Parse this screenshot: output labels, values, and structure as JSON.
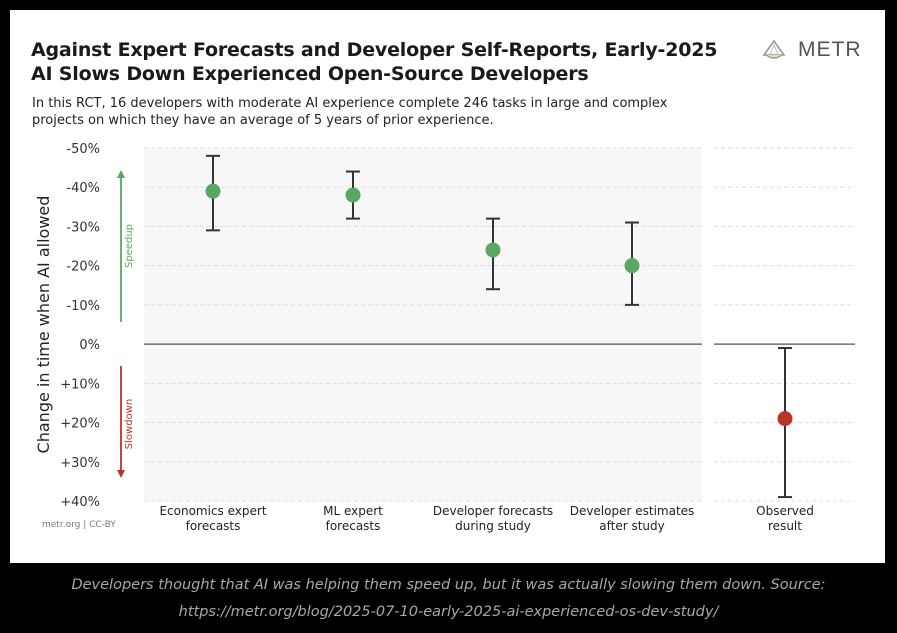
{
  "header": {
    "title_line1": "Against Expert Forecasts and Developer Self-Reports, Early-2025",
    "title_line2": "AI Slows Down Experienced Open-Source Developers",
    "subtitle_line1": "In this RCT, 16 developers with moderate AI experience complete 246 tasks in large and complex",
    "subtitle_line2": "projects on which they have an average of 5 years of prior experience.",
    "logo_text": "METR",
    "logo_icon": "metr-lamp-logo-icon"
  },
  "credit": "metr.org  |  CC-BY",
  "caption": {
    "line1": "Developers thought that AI was helping them speed up, but it was actually slowing them down. Source:",
    "line2": "https://metr.org/blog/2025-07-10-early-2025-ai-experienced-os-dev-study/"
  },
  "colors": {
    "speedup": "#5aa764",
    "slowdown": "#b8352a",
    "panel_bg": "#f7f7f7",
    "errorbar": "#333333"
  },
  "chart_data": {
    "type": "scatter",
    "title": "Against Expert Forecasts and Developer Self-Reports, Early-2025 AI Slows Down Experienced Open-Source Developers",
    "ylabel": "Change in time when AI allowed",
    "ylim": [
      -50,
      40
    ],
    "y_inverted": true,
    "yticks": [
      -50,
      -40,
      -30,
      -20,
      -10,
      0,
      10,
      20,
      30,
      40
    ],
    "ytick_labels": [
      "-50%",
      "-40%",
      "-30%",
      "-20%",
      "-10%",
      "0%",
      "+10%",
      "+20%",
      "+30%",
      "+40%"
    ],
    "grid": true,
    "zero_line": 0,
    "speedup_label": "Speedup",
    "slowdown_label": "Slowdown",
    "categories": [
      "Economics expert forecasts",
      "ML expert forecasts",
      "Developer forecasts during study",
      "Developer estimates after study",
      "Observed result"
    ],
    "category_lines": [
      [
        "Economics expert",
        "forecasts"
      ],
      [
        "ML expert",
        "forecasts"
      ],
      [
        "Developer forecasts",
        "during study"
      ],
      [
        "Developer estimates",
        "after study"
      ],
      [
        "Observed",
        "result"
      ]
    ],
    "series": [
      {
        "values": [
          -39,
          -38,
          -24,
          -20,
          19
        ],
        "lower": [
          -48,
          -44,
          -32,
          -31,
          1
        ],
        "upper": [
          -29,
          -32,
          -14,
          -10,
          39
        ],
        "colors": [
          "#5aa764",
          "#5aa764",
          "#5aa764",
          "#5aa764",
          "#b8352a"
        ]
      }
    ]
  }
}
